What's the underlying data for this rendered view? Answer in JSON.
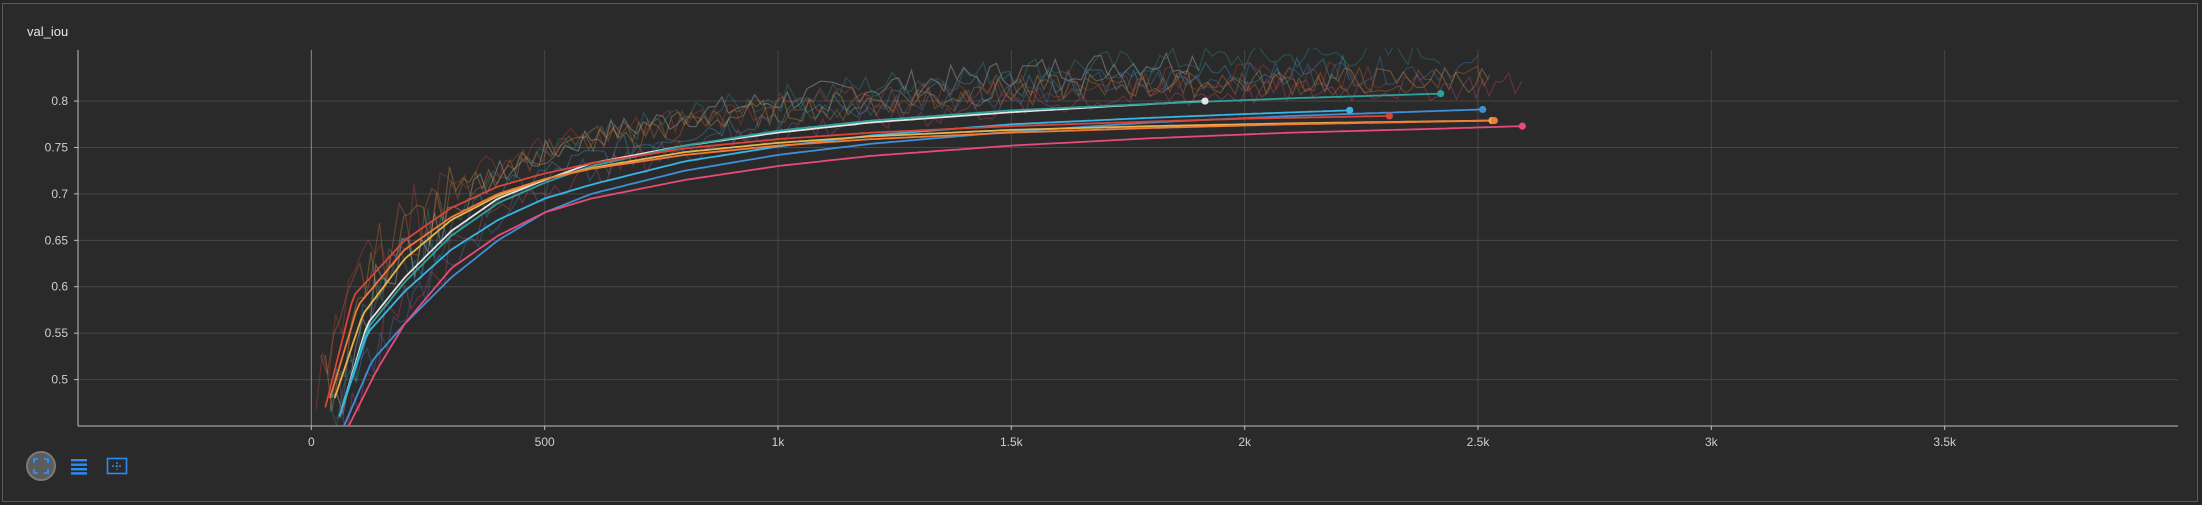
{
  "panel": {
    "title": "val_iou"
  },
  "toolbar": {
    "fullscreen_icon": "fullscreen-icon",
    "data_icon": "list-icon",
    "fit_icon": "fit-domain-icon"
  },
  "chart_data": {
    "type": "line",
    "title": "val_iou",
    "xlabel": "",
    "ylabel": "",
    "xlim": [
      -500,
      4000
    ],
    "ylim": [
      0.45,
      0.855
    ],
    "xticks": [
      0,
      500,
      1000,
      1500,
      2000,
      2500,
      3000,
      3500
    ],
    "xtick_labels": [
      "0",
      "500",
      "1k",
      "1.5k",
      "2k",
      "2.5k",
      "3k",
      "3.5k"
    ],
    "yticks": [
      0.5,
      0.55,
      0.6,
      0.65,
      0.7,
      0.75,
      0.8
    ],
    "ytick_labels": [
      "0.5",
      "0.55",
      "0.6",
      "0.65",
      "0.7",
      "0.75",
      "0.8"
    ],
    "grid": true,
    "series": [
      {
        "color": "#e5e5e5",
        "x": [
          60,
          120,
          200,
          300,
          400,
          500,
          600,
          800,
          1000,
          1200,
          1500,
          1700,
          1915
        ],
        "y": [
          0.46,
          0.56,
          0.61,
          0.66,
          0.695,
          0.715,
          0.733,
          0.752,
          0.766,
          0.777,
          0.788,
          0.794,
          0.8
        ]
      },
      {
        "color": "#2fa19a",
        "x": [
          60,
          120,
          200,
          300,
          400,
          500,
          600,
          800,
          1000,
          1200,
          1500,
          1800,
          2100,
          2420
        ],
        "y": [
          0.46,
          0.555,
          0.605,
          0.655,
          0.69,
          0.712,
          0.73,
          0.752,
          0.768,
          0.779,
          0.79,
          0.797,
          0.803,
          0.808
        ]
      },
      {
        "color": "#3f8ed8",
        "x": [
          70,
          130,
          200,
          300,
          400,
          500,
          600,
          800,
          1000,
          1200,
          1500,
          1800,
          2100,
          2510
        ],
        "y": [
          0.45,
          0.52,
          0.56,
          0.61,
          0.65,
          0.68,
          0.7,
          0.725,
          0.742,
          0.754,
          0.767,
          0.777,
          0.784,
          0.791
        ]
      },
      {
        "color": "#36b6e8",
        "x": [
          60,
          120,
          200,
          300,
          400,
          500,
          600,
          800,
          1000,
          1200,
          1500,
          1800,
          2000,
          2225
        ],
        "y": [
          0.46,
          0.55,
          0.595,
          0.64,
          0.672,
          0.695,
          0.71,
          0.735,
          0.751,
          0.763,
          0.775,
          0.782,
          0.786,
          0.79
        ]
      },
      {
        "color": "#e8b44a",
        "x": [
          50,
          110,
          200,
          300,
          400,
          500,
          600,
          800,
          1000,
          1200,
          1500,
          1800,
          2100,
          2530
        ],
        "y": [
          0.48,
          0.57,
          0.63,
          0.672,
          0.698,
          0.716,
          0.728,
          0.745,
          0.755,
          0.762,
          0.769,
          0.773,
          0.776,
          0.779
        ]
      },
      {
        "color": "#f07a3a",
        "x": [
          40,
          100,
          200,
          300,
          400,
          500,
          600,
          800,
          1000,
          1200,
          1500,
          1800,
          2100,
          2535
        ],
        "y": [
          0.48,
          0.58,
          0.64,
          0.675,
          0.7,
          0.716,
          0.727,
          0.742,
          0.752,
          0.759,
          0.766,
          0.771,
          0.775,
          0.779
        ]
      },
      {
        "color": "#d8453a",
        "x": [
          30,
          90,
          200,
          300,
          400,
          500,
          600,
          800,
          1000,
          1200,
          1500,
          1800,
          2000,
          2310
        ],
        "y": [
          0.47,
          0.59,
          0.65,
          0.685,
          0.708,
          0.722,
          0.733,
          0.749,
          0.759,
          0.766,
          0.773,
          0.778,
          0.781,
          0.784
        ]
      },
      {
        "color": "#e84a7a",
        "x": [
          80,
          140,
          200,
          300,
          400,
          500,
          600,
          800,
          1000,
          1200,
          1500,
          1800,
          2100,
          2400,
          2595
        ],
        "y": [
          0.45,
          0.51,
          0.56,
          0.62,
          0.655,
          0.68,
          0.695,
          0.715,
          0.73,
          0.741,
          0.752,
          0.76,
          0.766,
          0.77,
          0.773
        ]
      }
    ]
  }
}
